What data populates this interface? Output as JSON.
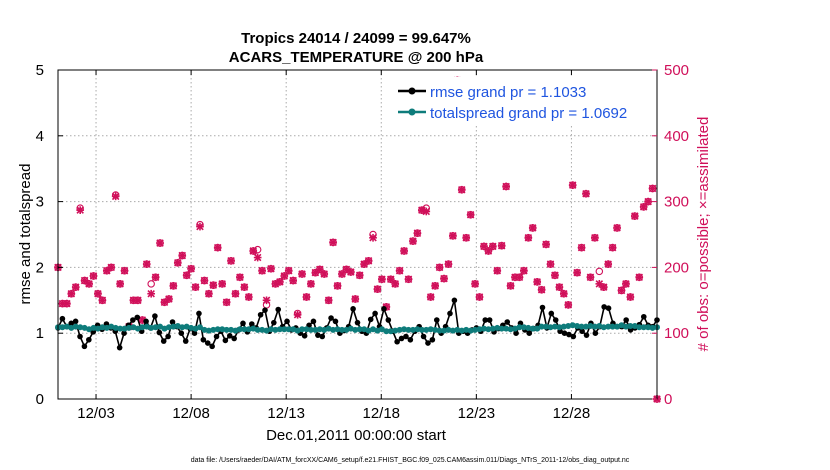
{
  "chart_data": {
    "type": "line",
    "title": "Tropics 24014 / 24099 = 99.647%",
    "subtitle": "ACARS_TEMPERATURE @ 200 hPa",
    "xlabel": "Dec.01,2011 00:00:00 start",
    "ylabel": "rmse and totalspread",
    "y2label": "# of obs: o=possible; ×=assimilated",
    "footer": "data file: /Users/raeder/DAI/ATM_forcXX/CAM6_setup/f.e21.FHIST_BGC.f09_025.CAM6assim.011/Diags_NTrS_2011-12/obs_diag_output.nc",
    "xlim": [
      0,
      31.5
    ],
    "ylim": [
      0,
      5
    ],
    "y2lim": [
      0,
      500
    ],
    "xticks": [
      2,
      7,
      12,
      17,
      22,
      27
    ],
    "xtick_labels": [
      "12/03",
      "12/08",
      "12/13",
      "12/18",
      "12/23",
      "12/28"
    ],
    "yticks": [
      0,
      1,
      2,
      3,
      4,
      5
    ],
    "y2ticks": [
      0,
      100,
      200,
      300,
      400,
      500
    ],
    "colors": {
      "rmse": "#000000",
      "spread": "#0e7c7b",
      "obs": "#d0105a",
      "legend_text": "#1f55e0",
      "axis": "#000000"
    },
    "legend": {
      "position": "top-right",
      "entries": [
        "rmse grand pr = 1.1033",
        "totalspread grand pr = 1.0692"
      ]
    },
    "series": [
      {
        "name": "rmse grand pr = 1.1033",
        "axis": "left",
        "values": [
          1.08,
          1.22,
          1.1,
          1.15,
          1.18,
          0.95,
          0.8,
          0.9,
          1.02,
          1.12,
          1.06,
          1.14,
          1.08,
          1.03,
          0.78,
          1.0,
          1.12,
          1.2,
          1.24,
          1.03,
          1.18,
          1.08,
          1.26,
          1.01,
          0.88,
          0.95,
          1.17,
          1.1,
          1.0,
          0.88,
          1.07,
          1.0,
          1.3,
          0.9,
          0.85,
          0.8,
          0.95,
          1.03,
          0.89,
          0.96,
          0.92,
          1.05,
          1.15,
          1.02,
          1.14,
          1.08,
          1.28,
          1.35,
          1.03,
          1.16,
          1.36,
          1.1,
          1.18,
          1.05,
          1.08,
          1.0,
          0.96,
          1.12,
          1.18,
          0.97,
          0.95,
          1.08,
          1.23,
          1.18,
          1.0,
          1.04,
          1.1,
          1.37,
          1.16,
          1.03,
          1.0,
          1.21,
          1.3,
          1.1,
          1.37,
          1.2,
          1.03,
          0.87,
          0.92,
          0.95,
          0.9,
          1.03,
          1.1,
          0.95,
          0.85,
          0.9,
          1.2,
          1.0,
          1.1,
          1.3,
          1.5,
          1.0,
          1.03,
          1.0,
          1.05,
          1.08,
          1.03,
          1.2,
          1.2,
          1.02,
          1.07,
          1.12,
          1.17,
          1.08,
          1.0,
          1.15,
          1.05,
          1.0,
          1.07,
          1.12,
          1.39,
          1.08,
          1.3,
          1.2,
          1.03,
          1.0,
          0.98,
          0.95,
          1.08,
          1.03,
          0.97,
          1.15,
          1.0,
          1.1,
          1.4,
          1.38,
          1.15,
          1.1,
          1.1,
          1.2,
          1.05,
          1.08,
          1.13,
          1.25,
          1.12,
          1.1,
          1.2
        ]
      },
      {
        "name": "totalspread grand pr = 1.0692",
        "axis": "left",
        "values": [
          1.09,
          1.09,
          1.1,
          1.08,
          1.1,
          1.09,
          1.08,
          1.06,
          1.08,
          1.07,
          1.09,
          1.08,
          1.1,
          1.08,
          1.07,
          1.07,
          1.08,
          1.09,
          1.07,
          1.09,
          1.1,
          1.08,
          1.09,
          1.1,
          1.07,
          1.09,
          1.1,
          1.11,
          1.09,
          1.1,
          1.08,
          1.07,
          1.09,
          1.05,
          1.04,
          1.05,
          1.06,
          1.06,
          1.05,
          1.05,
          1.04,
          1.06,
          1.06,
          1.06,
          1.07,
          1.05,
          1.05,
          1.04,
          1.06,
          1.05,
          1.06,
          1.06,
          1.06,
          1.06,
          1.04,
          1.06,
          1.06,
          1.05,
          1.05,
          1.06,
          1.05,
          1.07,
          1.05,
          1.06,
          1.05,
          1.05,
          1.07,
          1.05,
          1.06,
          1.06,
          1.04,
          1.06,
          1.04,
          1.06,
          1.03,
          1.03,
          1.04,
          1.05,
          1.06,
          1.05,
          1.05,
          1.06,
          1.05,
          1.05,
          1.06,
          1.05,
          1.04,
          1.04,
          1.05,
          1.04,
          1.05,
          1.04,
          1.05,
          1.04,
          1.05,
          1.06,
          1.07,
          1.06,
          1.07,
          1.08,
          1.07,
          1.07,
          1.06,
          1.07,
          1.09,
          1.09,
          1.08,
          1.07,
          1.07,
          1.1,
          1.1,
          1.09,
          1.1,
          1.09,
          1.1,
          1.11,
          1.12,
          1.11,
          1.1,
          1.1,
          1.11,
          1.1,
          1.11,
          1.09,
          1.1,
          1.1,
          1.1,
          1.12,
          1.1,
          1.11,
          1.11,
          1.09,
          1.09,
          1.09,
          1.08,
          1.09
        ]
      },
      {
        "name": "# of obs possible",
        "axis": "right",
        "marker": "o",
        "values": [
          200,
          145,
          145,
          160,
          170,
          290,
          180,
          175,
          187,
          160,
          150,
          195,
          200,
          310,
          175,
          195,
          110,
          150,
          150,
          120,
          205,
          175,
          185,
          237,
          147,
          152,
          172,
          207,
          218,
          188,
          198,
          170,
          265,
          180,
          160,
          173,
          230,
          175,
          147,
          210,
          160,
          185,
          170,
          155,
          225,
          227,
          195,
          143,
          198,
          175,
          178,
          187,
          195,
          180,
          130,
          190,
          155,
          175,
          192,
          197,
          190,
          150,
          238,
          172,
          190,
          197,
          193,
          152,
          188,
          205,
          210,
          250,
          167,
          182,
          140,
          182,
          175,
          195,
          225,
          182,
          240,
          252,
          287,
          290,
          155,
          172,
          200,
          183,
          205,
          248,
          485,
          318,
          245,
          280,
          175,
          155,
          232,
          225,
          232,
          195,
          233,
          323,
          172,
          185,
          185,
          195,
          245,
          260,
          178,
          166,
          235,
          205,
          188,
          170,
          160,
          143,
          325,
          192,
          230,
          312,
          185,
          245,
          194,
          170,
          205,
          230,
          260,
          165,
          175,
          155,
          278,
          185,
          292,
          300,
          320,
          0
        ]
      },
      {
        "name": "# of obs assimilated",
        "axis": "right",
        "marker": "x",
        "values": [
          200,
          145,
          145,
          160,
          170,
          287,
          180,
          175,
          187,
          160,
          150,
          195,
          200,
          308,
          175,
          195,
          110,
          150,
          150,
          120,
          205,
          160,
          185,
          237,
          147,
          152,
          172,
          207,
          218,
          188,
          198,
          170,
          262,
          180,
          160,
          173,
          230,
          175,
          147,
          210,
          160,
          185,
          170,
          155,
          225,
          215,
          195,
          150,
          198,
          175,
          178,
          187,
          195,
          180,
          128,
          190,
          155,
          175,
          192,
          197,
          190,
          150,
          238,
          172,
          190,
          197,
          193,
          152,
          188,
          205,
          210,
          245,
          167,
          182,
          140,
          182,
          175,
          195,
          225,
          182,
          240,
          252,
          287,
          285,
          155,
          172,
          200,
          183,
          205,
          248,
          485,
          318,
          245,
          280,
          175,
          155,
          232,
          225,
          232,
          195,
          233,
          323,
          172,
          185,
          185,
          195,
          245,
          260,
          178,
          166,
          235,
          205,
          188,
          170,
          160,
          143,
          325,
          192,
          230,
          312,
          185,
          245,
          175,
          170,
          205,
          230,
          260,
          165,
          175,
          155,
          278,
          185,
          292,
          300,
          320,
          0
        ]
      }
    ]
  }
}
